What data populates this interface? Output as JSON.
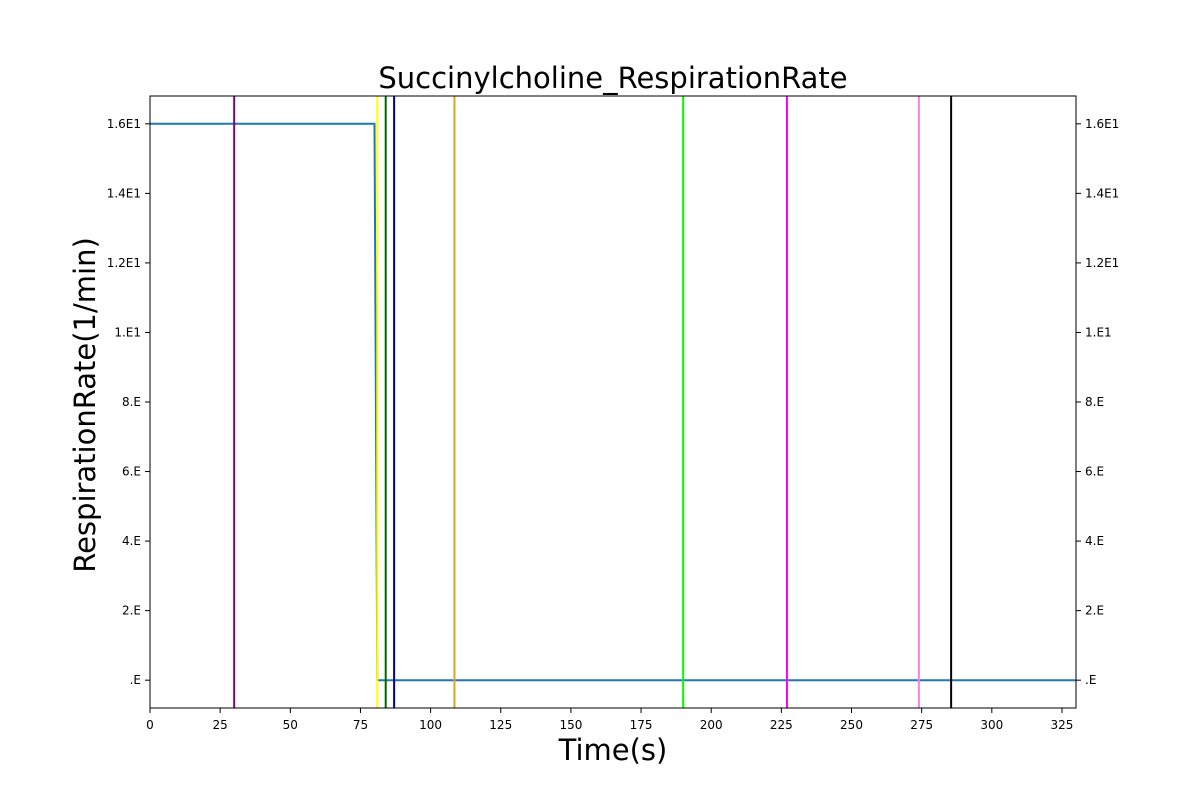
{
  "chart_data": {
    "type": "line",
    "title": "Succinylcholine_RespirationRate",
    "xlabel": "Time(s)",
    "ylabel": "RespirationRate(1/min)",
    "xlim": [
      0,
      330
    ],
    "ylim": [
      -0.8,
      16.8
    ],
    "x_ticks": [
      0,
      25,
      50,
      75,
      100,
      125,
      150,
      175,
      200,
      225,
      250,
      275,
      300,
      325
    ],
    "x_tick_labels": [
      "0",
      "25",
      "50",
      "75",
      "100",
      "125",
      "150",
      "175",
      "200",
      "225",
      "250",
      "275",
      "300",
      "325"
    ],
    "y_ticks": [
      0,
      2,
      4,
      6,
      8,
      10,
      12,
      14,
      16
    ],
    "y_tick_labels": [
      ".E",
      "2.E",
      "4.E",
      "6.E",
      "8.E",
      "1.E1",
      "1.2E1",
      "1.4E1",
      "1.6E1"
    ],
    "right_y_ticks": true,
    "grid": false,
    "legend": "none",
    "series": [
      {
        "color": "#1f77b4",
        "points": [
          [
            0,
            16
          ],
          [
            80,
            16
          ],
          [
            81,
            0
          ],
          [
            330,
            0
          ]
        ]
      }
    ],
    "vertical_lines": [
      {
        "x": 30,
        "color": "#800080"
      },
      {
        "x": 81,
        "color": "#ffff00"
      },
      {
        "x": 84,
        "color": "#006400"
      },
      {
        "x": 87,
        "color": "#00008b"
      },
      {
        "x": 108.5,
        "color": "#daa520"
      },
      {
        "x": 190,
        "color": "#00ff00"
      },
      {
        "x": 227,
        "color": "#ff00ff"
      },
      {
        "x": 274,
        "color": "#ee82ee"
      },
      {
        "x": 285.5,
        "color": "#000000"
      }
    ]
  }
}
